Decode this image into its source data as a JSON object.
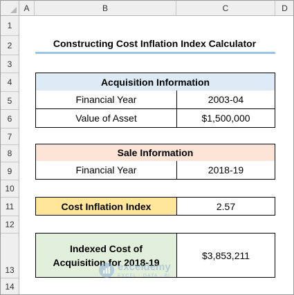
{
  "columns": [
    "A",
    "B",
    "C",
    "D"
  ],
  "rows": [
    "1",
    "2",
    "3",
    "4",
    "5",
    "6",
    "7",
    "8",
    "9",
    "10",
    "11",
    "12",
    "13",
    "14"
  ],
  "title": "Constructing Cost Inflation Index Calculator",
  "acquisition": {
    "header": "Acquisition Information",
    "year_label": "Financial Year",
    "year_value": "2003-04",
    "asset_label": "Value of Asset",
    "asset_value": "$1,500,000"
  },
  "sale": {
    "header": "Sale Information",
    "year_label": "Financial Year",
    "year_value": "2018-19"
  },
  "cii": {
    "label": "Cost Inflation Index",
    "value": "2.57"
  },
  "indexed_cost": {
    "label": "Indexed Cost of Acquisition for 2018-19",
    "value": "$3,853,211"
  },
  "watermark": {
    "name": "exceldemy",
    "tagline": "EXCEL · DATA · BI",
    "icon": "exceldemy-logo-icon",
    "color": "#8fb3d9"
  }
}
